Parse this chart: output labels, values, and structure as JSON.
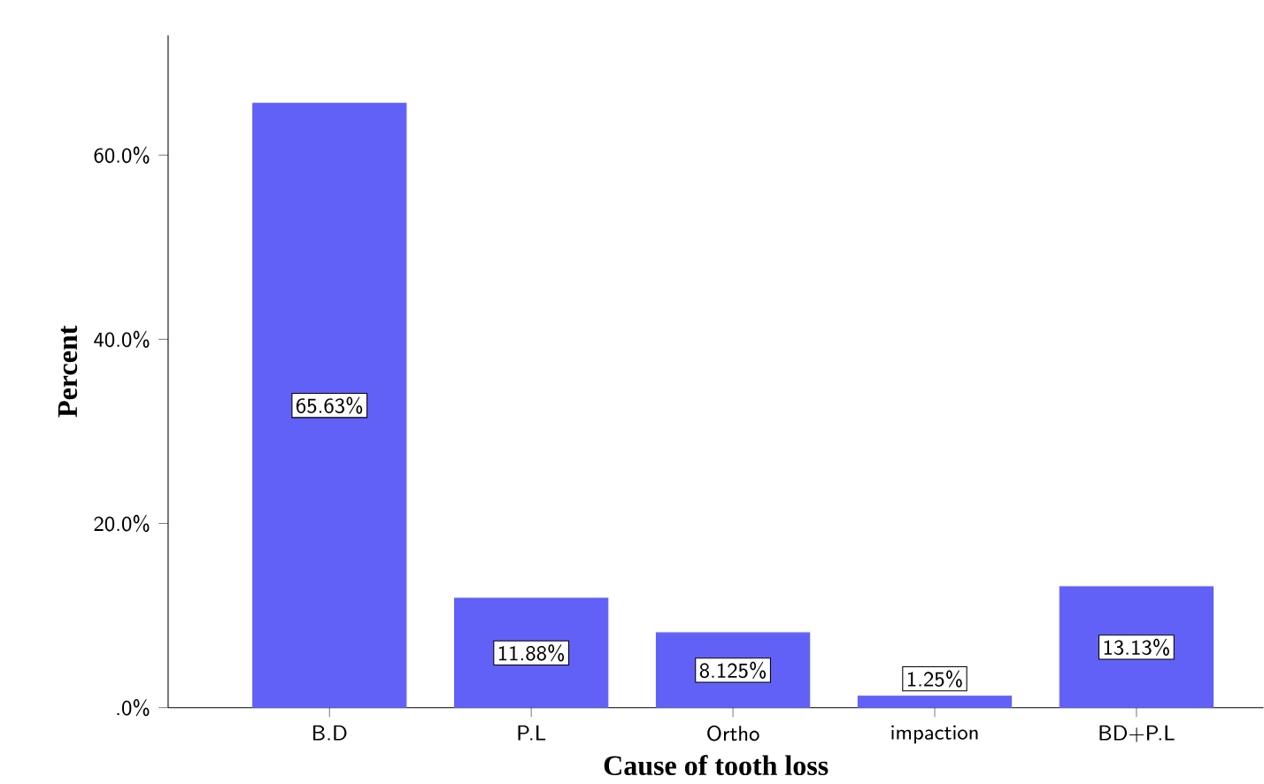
{
  "chart_data": {
    "type": "bar",
    "xlabel": "Cause of tooth loss",
    "ylabel": "Percent",
    "categories": [
      "B.D",
      "P.L",
      "Ortho",
      "impaction",
      "BD+P.L"
    ],
    "values": [
      65.63,
      11.88,
      8.125,
      1.25,
      13.13
    ],
    "value_labels": [
      "65.63%",
      "11.88%",
      "8.125%",
      "1.25%",
      "13.13%"
    ],
    "color": "#6161f7",
    "ylim": [
      0,
      73
    ],
    "yticks": [
      {
        "value": 0,
        "label": ".0%"
      },
      {
        "value": 20,
        "label": "20.0%"
      },
      {
        "value": 40,
        "label": "40.0%"
      },
      {
        "value": 60,
        "label": "60.0%"
      }
    ]
  }
}
